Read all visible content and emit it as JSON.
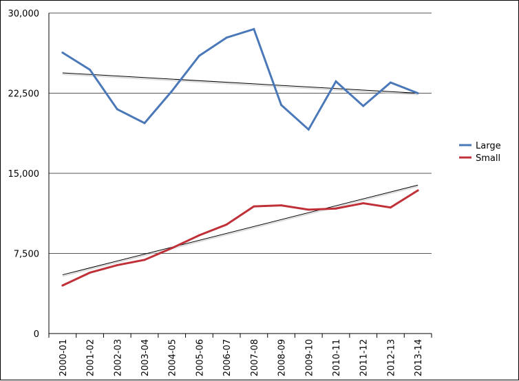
{
  "chart_data": {
    "type": "line",
    "categories": [
      "2000-01",
      "2001-02",
      "2002-03",
      "2003-04",
      "2004-05",
      "2005-06",
      "2006-07",
      "2007-08",
      "2008-09",
      "2009-10",
      "2010-11",
      "2011-12",
      "2012-13",
      "2013-14"
    ],
    "series": [
      {
        "name": "Large",
        "color": "#4a78b8",
        "values": [
          26300,
          24700,
          21000,
          19700,
          22700,
          26000,
          27700,
          28500,
          21400,
          19100,
          23600,
          21300,
          23500,
          22500
        ]
      },
      {
        "name": "Small",
        "color": "#c03038",
        "values": [
          4500,
          5700,
          6400,
          6900,
          8000,
          9200,
          10200,
          11900,
          12000,
          11600,
          11700,
          12200,
          11800,
          13400
        ]
      }
    ],
    "trendlines": [
      {
        "series": "Large",
        "start": 24400,
        "end": 22500,
        "color": "#000000"
      },
      {
        "series": "Small",
        "start": 5500,
        "end": 13900,
        "color": "#000000"
      }
    ],
    "yticks": [
      0,
      7500,
      15000,
      22500,
      30000
    ],
    "ytick_labels": [
      "0",
      "7,500",
      "15,000",
      "22,500",
      "30,000"
    ],
    "ylim": [
      0,
      30000
    ],
    "grid": "horizontal",
    "legend": "right",
    "title": "",
    "xlabel": "",
    "ylabel": ""
  }
}
